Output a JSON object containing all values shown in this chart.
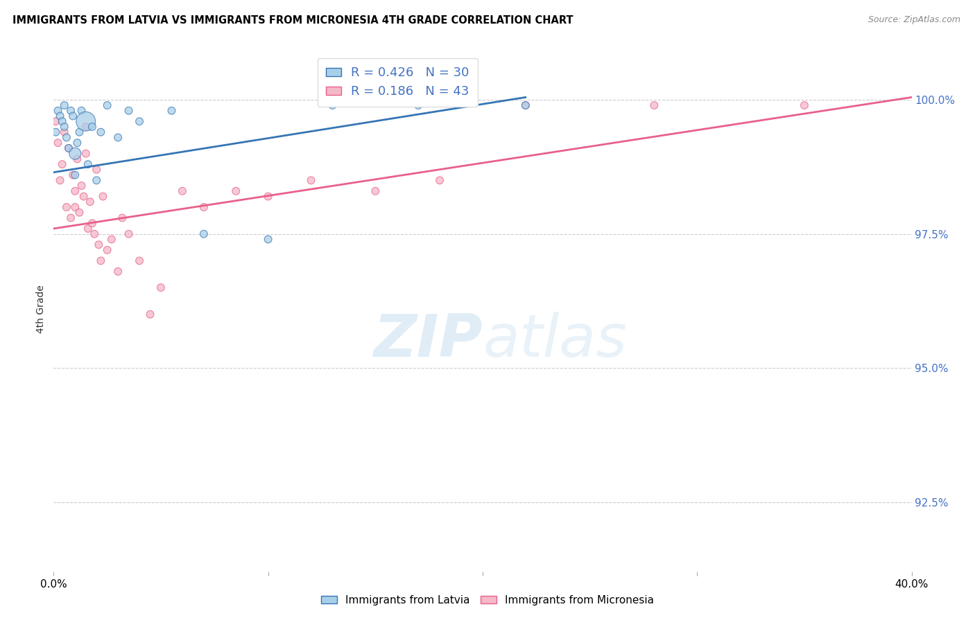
{
  "title": "IMMIGRANTS FROM LATVIA VS IMMIGRANTS FROM MICRONESIA 4TH GRADE CORRELATION CHART",
  "source": "Source: ZipAtlas.com",
  "ylabel": "4th Grade",
  "y_ticks": [
    92.5,
    95.0,
    97.5,
    100.0
  ],
  "y_tick_labels": [
    "92.5%",
    "95.0%",
    "97.5%",
    "100.0%"
  ],
  "x_min": 0.0,
  "x_max": 40.0,
  "y_min": 91.2,
  "y_max": 101.0,
  "blue_color": "#a8cfe8",
  "pink_color": "#f4b8c8",
  "blue_line_color": "#3575b5",
  "pink_line_color": "#e8608a",
  "legend_blue_R": "0.426",
  "legend_blue_N": "30",
  "legend_pink_R": "0.186",
  "legend_pink_N": "43",
  "blue_scatter_x": [
    0.1,
    0.2,
    0.3,
    0.4,
    0.5,
    0.5,
    0.6,
    0.7,
    0.8,
    0.9,
    1.0,
    1.0,
    1.1,
    1.2,
    1.3,
    1.5,
    1.6,
    1.8,
    2.0,
    2.2,
    2.5,
    3.0,
    3.5,
    4.0,
    5.5,
    7.0,
    10.0,
    13.0,
    17.0,
    22.0
  ],
  "blue_scatter_y": [
    99.4,
    99.8,
    99.7,
    99.6,
    99.9,
    99.5,
    99.3,
    99.1,
    99.8,
    99.7,
    99.0,
    98.6,
    99.2,
    99.4,
    99.8,
    99.6,
    98.8,
    99.5,
    98.5,
    99.4,
    99.9,
    99.3,
    99.8,
    99.6,
    99.8,
    97.5,
    97.4,
    99.9,
    99.9,
    99.9
  ],
  "blue_scatter_sizes": [
    60,
    60,
    60,
    60,
    60,
    60,
    60,
    60,
    60,
    60,
    150,
    60,
    60,
    60,
    60,
    400,
    60,
    60,
    60,
    60,
    60,
    60,
    60,
    60,
    60,
    60,
    60,
    60,
    60,
    60
  ],
  "pink_scatter_x": [
    0.1,
    0.2,
    0.3,
    0.4,
    0.5,
    0.6,
    0.7,
    0.8,
    0.9,
    1.0,
    1.0,
    1.1,
    1.2,
    1.3,
    1.4,
    1.5,
    1.5,
    1.6,
    1.7,
    1.8,
    1.9,
    2.0,
    2.1,
    2.2,
    2.3,
    2.5,
    2.7,
    3.0,
    3.2,
    3.5,
    4.0,
    4.5,
    5.0,
    6.0,
    7.0,
    8.5,
    10.0,
    12.0,
    15.0,
    18.0,
    22.0,
    28.0,
    35.0
  ],
  "pink_scatter_y": [
    99.6,
    99.2,
    98.5,
    98.8,
    99.4,
    98.0,
    99.1,
    97.8,
    98.6,
    98.3,
    98.0,
    98.9,
    97.9,
    98.4,
    98.2,
    99.5,
    99.0,
    97.6,
    98.1,
    97.7,
    97.5,
    98.7,
    97.3,
    97.0,
    98.2,
    97.2,
    97.4,
    96.8,
    97.8,
    97.5,
    97.0,
    96.0,
    96.5,
    98.3,
    98.0,
    98.3,
    98.2,
    98.5,
    98.3,
    98.5,
    99.9,
    99.9,
    99.9
  ],
  "pink_scatter_sizes": [
    60,
    60,
    60,
    60,
    60,
    60,
    60,
    60,
    60,
    60,
    60,
    60,
    60,
    60,
    60,
    60,
    60,
    60,
    60,
    60,
    60,
    60,
    60,
    60,
    60,
    60,
    60,
    60,
    60,
    60,
    60,
    60,
    60,
    60,
    60,
    60,
    60,
    60,
    60,
    60,
    60,
    60,
    60
  ],
  "blue_regr_x0": 0.0,
  "blue_regr_y0": 98.65,
  "blue_regr_x1": 22.0,
  "blue_regr_y1": 100.05,
  "pink_regr_x0": 0.0,
  "pink_regr_y0": 97.6,
  "pink_regr_x1": 40.0,
  "pink_regr_y1": 100.05,
  "watermark_zip": "ZIP",
  "watermark_atlas": "atlas",
  "background_color": "#ffffff",
  "grid_color": "#cccccc",
  "tick_color": "#4472c4"
}
